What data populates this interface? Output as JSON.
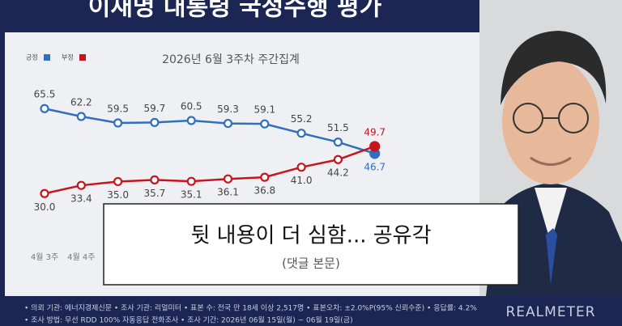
{
  "chart_data": {
    "type": "line",
    "title": "이재명 대통령 국정수행 평가",
    "subtitle": "2026년 6월 3주차 주간집계",
    "categories": [
      "4월 3주",
      "4월 4주",
      null,
      null,
      null,
      null,
      null,
      null,
      null,
      null
    ],
    "series": [
      {
        "name": "긍정",
        "color": "#2f6fbe",
        "values": [
          65.5,
          62.2,
          59.5,
          59.7,
          60.5,
          59.3,
          59.1,
          55.2,
          51.5,
          46.7
        ]
      },
      {
        "name": "부정",
        "color": "#c4161c",
        "values": [
          30.0,
          33.4,
          35.0,
          35.7,
          35.1,
          36.1,
          36.8,
          41.0,
          44.2,
          49.7
        ],
        "value_labels": [
          "30.0",
          "33.4",
          "35.0",
          "35.7",
          "35.1",
          "36.1",
          "36.8",
          "41.0",
          "44.2",
          "49.7"
        ]
      }
    ],
    "ylim": [
      24,
      72
    ]
  },
  "overlay": {
    "headline": "뒷 내용이 더 심함... 공유각",
    "caption": "(댓글 본문)"
  },
  "footer": {
    "line1": "• 의뢰 기관: 에너지경제신문 • 조사 기관: 리얼미터 • 표본 수: 전국 만 18세 이상 2,517명 • 표본오차: ±2.0%P(95% 신뢰수준) • 응답률: 4.2%",
    "line2": "• 조사 방법: 무선 RDD 100% 자동응답 전화조사 • 조사 기간: 2026년 06월 15일(월) ~ 06월 19일(금)",
    "logo": "REALMETER"
  }
}
